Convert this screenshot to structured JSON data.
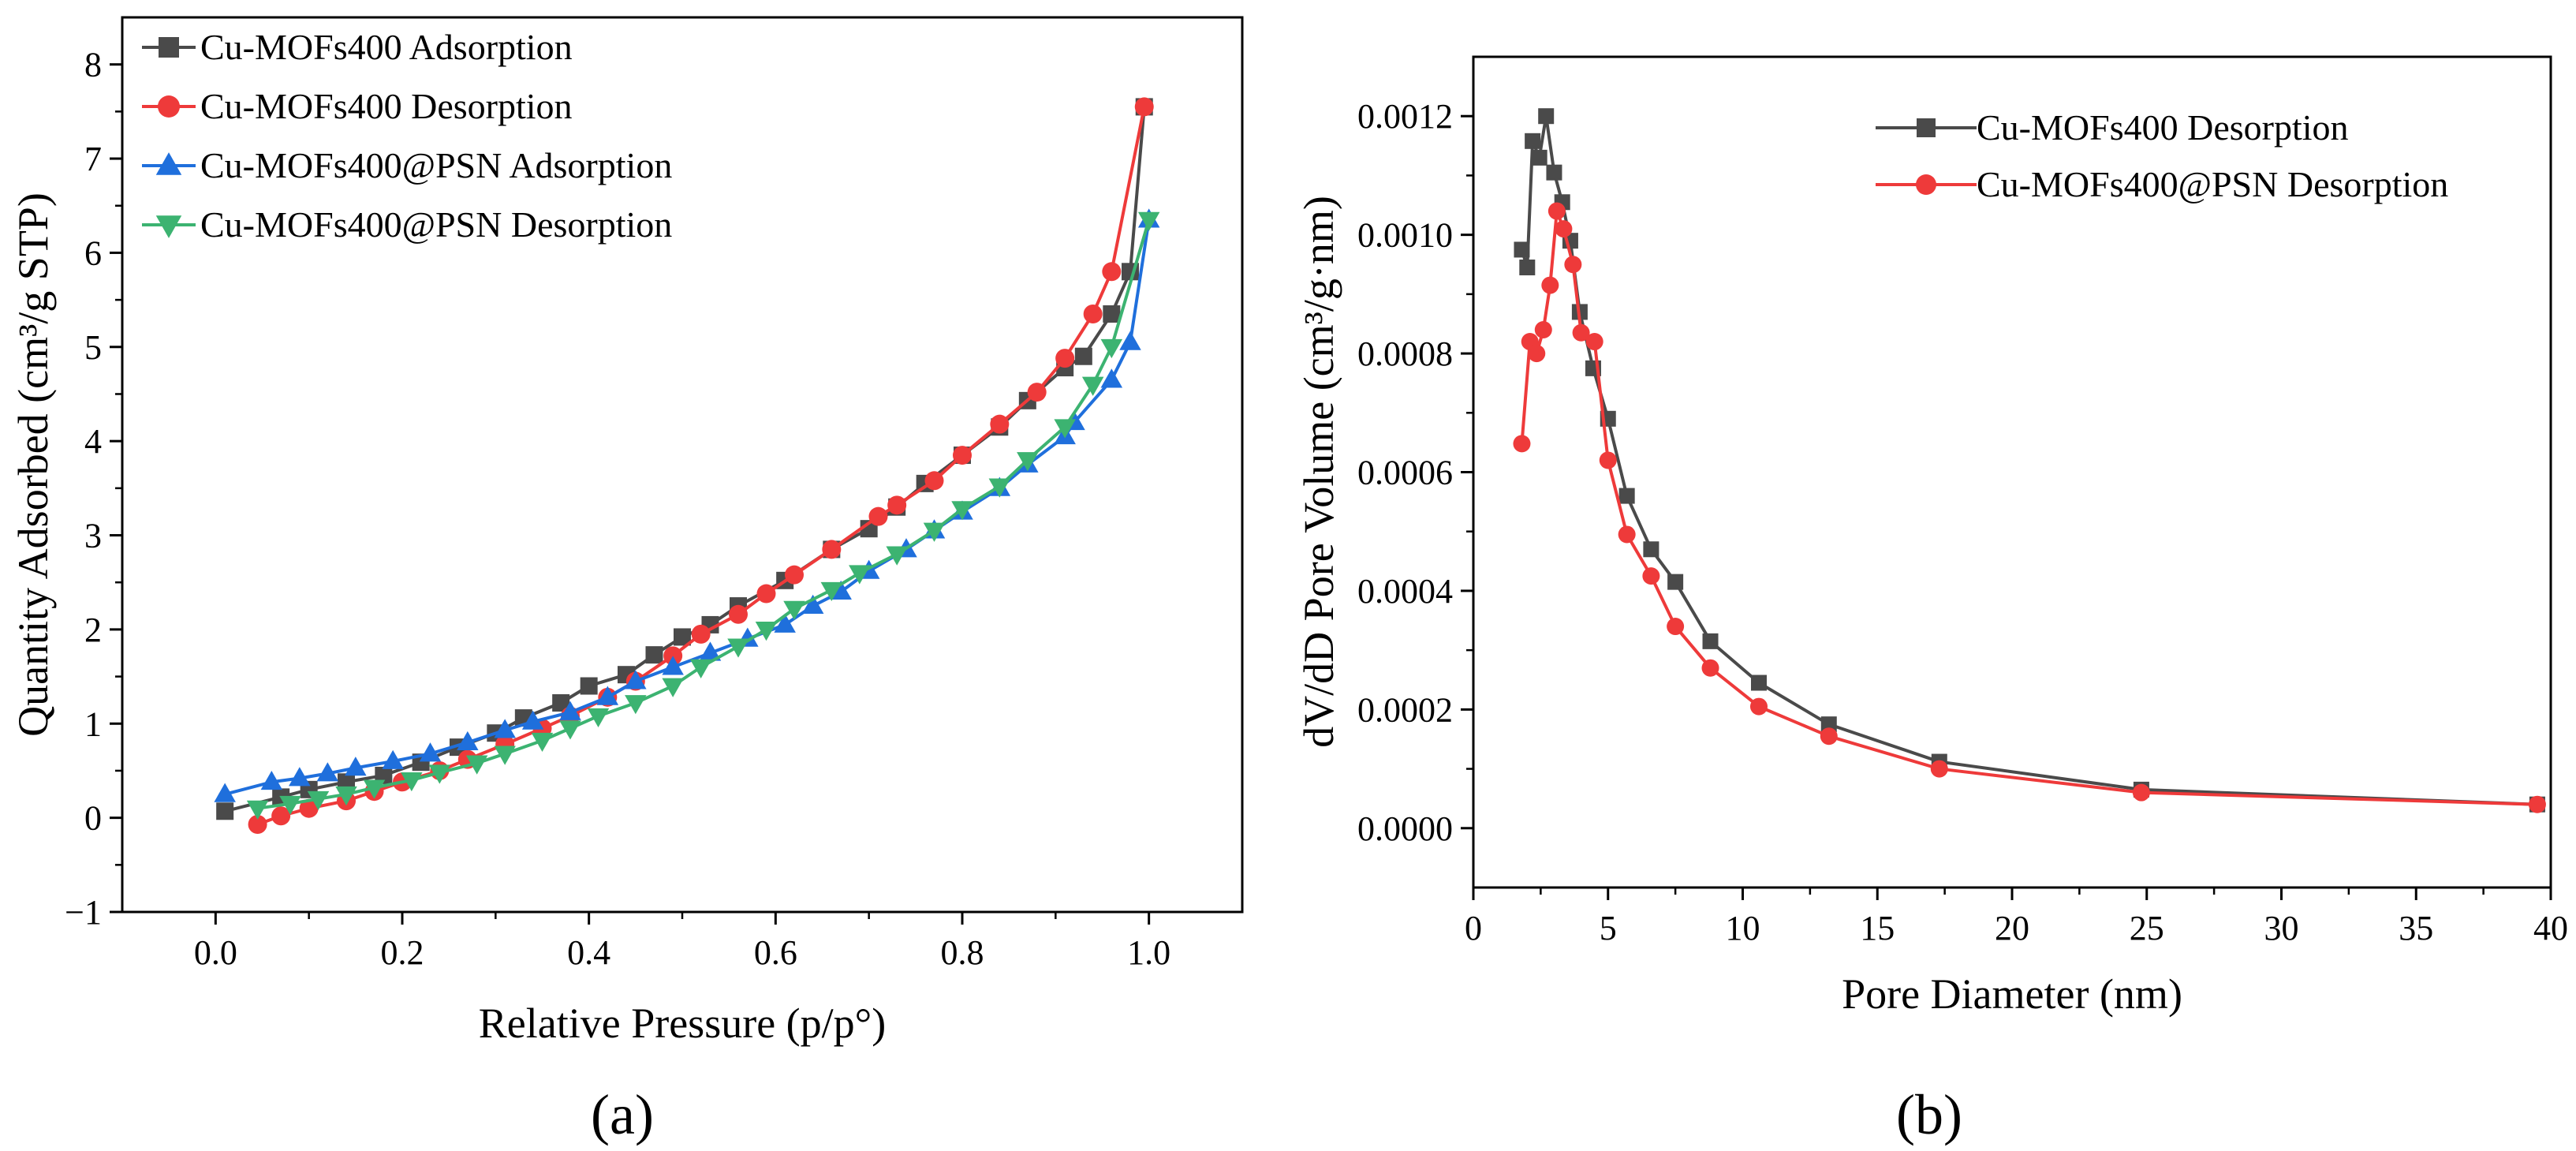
{
  "figure": {
    "panel_labels": [
      "(a)",
      "(b)"
    ]
  },
  "colors": {
    "cu_mofs400_adsorption": "#4a4a4a",
    "cu_mofs400_desorption": "#ee3a3a",
    "psn_adsorption": "#1f6fdc",
    "psn_desorption": "#3cb371"
  },
  "chart_data": [
    {
      "panel": "a",
      "type": "line",
      "title": "",
      "xlabel": "Relative Pressure (p/p°)",
      "ylabel": "Quantity Adsorbed (cm³/g STP)",
      "xlim": [
        -0.1,
        1.1
      ],
      "ylim": [
        -1,
        8.5
      ],
      "xticks": [
        0.0,
        0.2,
        0.4,
        0.6,
        0.8,
        1.0
      ],
      "xtick_labels": [
        "0.0",
        "0.2",
        "0.4",
        "0.6",
        "0.8",
        "1.0"
      ],
      "yticks": [
        -1,
        0,
        1,
        2,
        3,
        4,
        5,
        6,
        7,
        8
      ],
      "ytick_labels": [
        "−1",
        "0",
        "1",
        "2",
        "3",
        "4",
        "5",
        "6",
        "7",
        "8"
      ],
      "legend_position": "top-left",
      "series": [
        {
          "name": "Cu-MOFs400 Adsorption",
          "color": "#4a4a4a",
          "marker": "square",
          "points": [
            [
              0.01,
              0.07
            ],
            [
              0.07,
              0.22
            ],
            [
              0.1,
              0.3
            ],
            [
              0.14,
              0.38
            ],
            [
              0.18,
              0.45
            ],
            [
              0.22,
              0.59
            ],
            [
              0.26,
              0.75
            ],
            [
              0.3,
              0.9
            ],
            [
              0.33,
              1.06
            ],
            [
              0.37,
              1.22
            ],
            [
              0.4,
              1.4
            ],
            [
              0.44,
              1.52
            ],
            [
              0.47,
              1.73
            ],
            [
              0.5,
              1.92
            ],
            [
              0.53,
              2.05
            ],
            [
              0.56,
              2.25
            ],
            [
              0.61,
              2.52
            ],
            [
              0.66,
              2.85
            ],
            [
              0.7,
              3.07
            ],
            [
              0.73,
              3.3
            ],
            [
              0.76,
              3.55
            ],
            [
              0.8,
              3.85
            ],
            [
              0.84,
              4.15
            ],
            [
              0.87,
              4.43
            ],
            [
              0.91,
              4.78
            ],
            [
              0.93,
              4.9
            ],
            [
              0.96,
              5.35
            ],
            [
              0.98,
              5.8
            ],
            [
              0.995,
              7.55
            ]
          ]
        },
        {
          "name": "Cu-MOFs400 Desorption",
          "color": "#ee3a3a",
          "marker": "circle",
          "points": [
            [
              0.995,
              7.55
            ],
            [
              0.96,
              5.8
            ],
            [
              0.94,
              5.35
            ],
            [
              0.91,
              4.88
            ],
            [
              0.88,
              4.52
            ],
            [
              0.84,
              4.18
            ],
            [
              0.8,
              3.85
            ],
            [
              0.77,
              3.58
            ],
            [
              0.73,
              3.32
            ],
            [
              0.71,
              3.2
            ],
            [
              0.66,
              2.85
            ],
            [
              0.62,
              2.58
            ],
            [
              0.59,
              2.38
            ],
            [
              0.56,
              2.16
            ],
            [
              0.52,
              1.95
            ],
            [
              0.49,
              1.72
            ],
            [
              0.45,
              1.45
            ],
            [
              0.42,
              1.28
            ],
            [
              0.38,
              1.08
            ],
            [
              0.35,
              0.95
            ],
            [
              0.31,
              0.78
            ],
            [
              0.27,
              0.62
            ],
            [
              0.24,
              0.5
            ],
            [
              0.2,
              0.38
            ],
            [
              0.17,
              0.28
            ],
            [
              0.14,
              0.18
            ],
            [
              0.1,
              0.1
            ],
            [
              0.07,
              0.02
            ],
            [
              0.045,
              -0.07
            ]
          ]
        },
        {
          "name": "Cu-MOFs400@PSN Adsorption",
          "color": "#1f6fdc",
          "marker": "triangle-up",
          "points": [
            [
              0.01,
              0.25
            ],
            [
              0.06,
              0.38
            ],
            [
              0.09,
              0.42
            ],
            [
              0.12,
              0.47
            ],
            [
              0.15,
              0.53
            ],
            [
              0.19,
              0.6
            ],
            [
              0.23,
              0.68
            ],
            [
              0.27,
              0.8
            ],
            [
              0.31,
              0.93
            ],
            [
              0.34,
              1.02
            ],
            [
              0.38,
              1.12
            ],
            [
              0.42,
              1.28
            ],
            [
              0.45,
              1.45
            ],
            [
              0.49,
              1.6
            ],
            [
              0.53,
              1.75
            ],
            [
              0.57,
              1.9
            ],
            [
              0.61,
              2.05
            ],
            [
              0.64,
              2.25
            ],
            [
              0.67,
              2.4
            ],
            [
              0.7,
              2.62
            ],
            [
              0.74,
              2.85
            ],
            [
              0.77,
              3.05
            ],
            [
              0.8,
              3.25
            ],
            [
              0.84,
              3.5
            ],
            [
              0.87,
              3.75
            ],
            [
              0.91,
              4.05
            ],
            [
              0.92,
              4.2
            ],
            [
              0.96,
              4.65
            ],
            [
              0.98,
              5.05
            ],
            [
              1.0,
              6.35
            ]
          ]
        },
        {
          "name": "Cu-MOFs400@PSN Desorption",
          "color": "#3cb371",
          "marker": "triangle-down",
          "points": [
            [
              1.0,
              6.35
            ],
            [
              0.96,
              5.0
            ],
            [
              0.94,
              4.6
            ],
            [
              0.91,
              4.15
            ],
            [
              0.87,
              3.8
            ],
            [
              0.84,
              3.52
            ],
            [
              0.8,
              3.28
            ],
            [
              0.77,
              3.05
            ],
            [
              0.73,
              2.8
            ],
            [
              0.69,
              2.6
            ],
            [
              0.66,
              2.42
            ],
            [
              0.62,
              2.22
            ],
            [
              0.59,
              2.0
            ],
            [
              0.56,
              1.82
            ],
            [
              0.52,
              1.6
            ],
            [
              0.49,
              1.4
            ],
            [
              0.45,
              1.22
            ],
            [
              0.41,
              1.08
            ],
            [
              0.38,
              0.95
            ],
            [
              0.35,
              0.82
            ],
            [
              0.31,
              0.68
            ],
            [
              0.28,
              0.58
            ],
            [
              0.24,
              0.48
            ],
            [
              0.21,
              0.4
            ],
            [
              0.17,
              0.32
            ],
            [
              0.14,
              0.25
            ],
            [
              0.11,
              0.2
            ],
            [
              0.08,
              0.15
            ],
            [
              0.045,
              0.1
            ]
          ]
        }
      ]
    },
    {
      "panel": "b",
      "type": "line",
      "title": "",
      "xlabel": "Pore Diameter (nm)",
      "ylabel": "dV/dD Pore Volume (cm³/g·nm)",
      "xlim": [
        0,
        40
      ],
      "ylim": [
        -0.0001,
        0.0013
      ],
      "xticks": [
        0,
        5,
        10,
        15,
        20,
        25,
        30,
        35,
        40
      ],
      "xtick_labels": [
        "0",
        "5",
        "10",
        "15",
        "20",
        "25",
        "30",
        "35",
        "40"
      ],
      "yticks": [
        0.0,
        0.0002,
        0.0004,
        0.0006,
        0.0008,
        0.001,
        0.0012
      ],
      "ytick_labels": [
        "0.0000",
        "0.0002",
        "0.0004",
        "0.0006",
        "0.0008",
        "0.0010",
        "0.0012"
      ],
      "legend_position": "top-right",
      "series": [
        {
          "name": "Cu-MOFs400 Desorption",
          "color": "#4a4a4a",
          "marker": "square",
          "points": [
            [
              1.8,
              0.000975
            ],
            [
              2.0,
              0.000945
            ],
            [
              2.2,
              0.001158
            ],
            [
              2.45,
              0.00113
            ],
            [
              2.7,
              0.0012
            ],
            [
              3.0,
              0.001105
            ],
            [
              3.3,
              0.001055
            ],
            [
              3.6,
              0.00099
            ],
            [
              3.95,
              0.00087
            ],
            [
              4.45,
              0.000775
            ],
            [
              5.0,
              0.00069
            ],
            [
              5.7,
              0.00056
            ],
            [
              6.6,
              0.00047
            ],
            [
              7.5,
              0.000415
            ],
            [
              8.8,
              0.000315
            ],
            [
              10.6,
              0.000245
            ],
            [
              13.2,
              0.000175
            ],
            [
              17.3,
              0.000112
            ],
            [
              24.8,
              6.5e-05
            ],
            [
              39.5,
              4e-05
            ]
          ]
        },
        {
          "name": "Cu-MOFs400@PSN Desorption",
          "color": "#ee3a3a",
          "marker": "circle",
          "points": [
            [
              1.8,
              0.000648
            ],
            [
              2.1,
              0.00082
            ],
            [
              2.35,
              0.0008
            ],
            [
              2.6,
              0.00084
            ],
            [
              2.85,
              0.000915
            ],
            [
              3.1,
              0.00104
            ],
            [
              3.35,
              0.00101
            ],
            [
              3.7,
              0.00095
            ],
            [
              4.0,
              0.000835
            ],
            [
              4.5,
              0.00082
            ],
            [
              5.0,
              0.00062
            ],
            [
              5.7,
              0.000495
            ],
            [
              6.6,
              0.000425
            ],
            [
              7.5,
              0.00034
            ],
            [
              8.8,
              0.00027
            ],
            [
              10.6,
              0.000205
            ],
            [
              13.2,
              0.000155
            ],
            [
              17.3,
              0.0001
            ],
            [
              24.8,
              6e-05
            ],
            [
              39.5,
              4e-05
            ]
          ]
        }
      ]
    }
  ]
}
